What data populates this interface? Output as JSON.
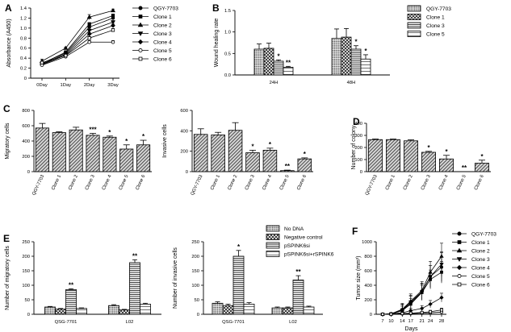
{
  "chart_data": [
    {
      "id": "A",
      "type": "line",
      "panel_label": "A",
      "ylabel": "Absorbance (A450)",
      "categories": [
        "0Day",
        "1Day",
        "2Day",
        "3Day"
      ],
      "ylim": [
        0,
        1.4
      ],
      "yticks": [
        "0",
        "0.2",
        "0.4",
        "0.6",
        "0.8",
        "1.0",
        "1.2",
        "1.4"
      ],
      "series": [
        {
          "name": "QGY-7703",
          "values": [
            0.3,
            0.5,
            1.02,
            1.2
          ],
          "errors": [
            0.03,
            0.02,
            0.03,
            0.03
          ],
          "marker": "circle"
        },
        {
          "name": "Clone 1",
          "values": [
            0.29,
            0.52,
            1.08,
            1.25
          ],
          "errors": [
            0.03,
            0.02,
            0.03,
            0.03
          ],
          "marker": "square"
        },
        {
          "name": "Clone 2",
          "values": [
            0.34,
            0.6,
            1.22,
            1.35
          ],
          "errors": [
            0.04,
            0.02,
            0.05,
            0.03
          ],
          "marker": "triangle-up"
        },
        {
          "name": "Clone 3",
          "values": [
            0.28,
            0.48,
            0.95,
            1.12
          ],
          "errors": [
            0.03,
            0.02,
            0.03,
            0.03
          ],
          "marker": "triangle-down"
        },
        {
          "name": "Clone 4",
          "values": [
            0.27,
            0.46,
            0.88,
            1.05
          ],
          "errors": [
            0.03,
            0.02,
            0.03,
            0.03
          ],
          "marker": "diamond"
        },
        {
          "name": "Clone 5",
          "values": [
            0.26,
            0.43,
            0.72,
            0.72
          ],
          "errors": [
            0.03,
            0.02,
            0.03,
            0.03
          ],
          "marker": "circle-open"
        },
        {
          "name": "Clone 6",
          "values": [
            0.31,
            0.45,
            0.8,
            0.96
          ],
          "errors": [
            0.03,
            0.02,
            0.03,
            0.03
          ],
          "marker": "square-open"
        }
      ]
    },
    {
      "id": "B",
      "type": "bar",
      "panel_label": "B",
      "ylabel": "Wound healing rate",
      "categories": [
        "24H",
        "48H"
      ],
      "ylim": [
        0,
        1.5
      ],
      "yticks": [
        "0.0",
        "0.5",
        "1.0",
        "1.5"
      ],
      "series": [
        {
          "name": "QGY-7703",
          "values": [
            0.6,
            0.85
          ],
          "errors": [
            0.12,
            0.22
          ],
          "pattern": "dots"
        },
        {
          "name": "Clone 1",
          "values": [
            0.62,
            0.88
          ],
          "errors": [
            0.12,
            0.2
          ],
          "pattern": "cross"
        },
        {
          "name": "Clone 3",
          "values": [
            0.32,
            0.6
          ],
          "errors": [
            0.03,
            0.08
          ],
          "pattern": "stripes"
        },
        {
          "name": "Clone 5",
          "values": [
            0.18,
            0.37
          ],
          "errors": [
            0.02,
            0.1
          ],
          "pattern": "lines"
        }
      ],
      "stars": [
        [
          "",
          ""
        ],
        [
          "",
          ""
        ],
        [
          "*",
          "*"
        ],
        [
          "**",
          "*"
        ]
      ]
    },
    {
      "id": "C1",
      "type": "bar",
      "panel_label": "C",
      "ylabel": "Migratory cells",
      "categories": [
        "QGY-7703",
        "Clone 1",
        "Clone 2",
        "Clone 3",
        "Clone 4",
        "Clone 5",
        "Clone 6"
      ],
      "ylim": [
        0,
        800
      ],
      "yticks": [
        "0",
        "200",
        "400",
        "600",
        "800"
      ],
      "values": [
        570,
        510,
        545,
        475,
        450,
        295,
        350
      ],
      "errors": [
        60,
        10,
        35,
        25,
        15,
        55,
        60
      ],
      "stars": [
        "",
        "",
        "",
        "***",
        "*",
        "*",
        "*"
      ]
    },
    {
      "id": "C2",
      "type": "bar",
      "panel_label": "",
      "ylabel": "Invasive cells",
      "categories": [
        "QGY-7703",
        "Clone 1",
        "Clone 2",
        "Clone 3",
        "Clone 4",
        "Clone 5",
        "Clone 6"
      ],
      "ylim": [
        0,
        600
      ],
      "yticks": [
        "0",
        "200",
        "400",
        "600"
      ],
      "values": [
        365,
        360,
        405,
        185,
        210,
        10,
        125
      ],
      "errors": [
        55,
        25,
        75,
        25,
        20,
        5,
        10
      ],
      "stars": [
        "",
        "",
        "",
        "*",
        "*",
        "**",
        "*"
      ]
    },
    {
      "id": "D",
      "type": "bar",
      "panel_label": "D",
      "ylabel": "Number of colony",
      "categories": [
        "QGY-7703",
        "Clone 1",
        "Clone 2",
        "Clone 3",
        "Clone 4",
        "Clone 5",
        "Clone 6"
      ],
      "ylim": [
        0,
        400
      ],
      "yticks": [
        "0",
        "100",
        "200",
        "300",
        "400"
      ],
      "values": [
        265,
        265,
        255,
        160,
        105,
        0,
        70
      ],
      "errors": [
        5,
        5,
        8,
        8,
        30,
        0,
        25
      ],
      "stars": [
        "",
        "",
        "",
        "*",
        "*",
        "**",
        "*"
      ]
    },
    {
      "id": "E1",
      "type": "bar",
      "panel_label": "E",
      "ylabel": "Number of migratory cells",
      "categories": [
        "QSG-7701",
        "L02"
      ],
      "ylim": [
        0,
        250
      ],
      "yticks": [
        "0",
        "50",
        "100",
        "150",
        "200",
        "250"
      ],
      "series": [
        {
          "name": "No DNA",
          "values": [
            25,
            30
          ],
          "errors": [
            2,
            3
          ],
          "pattern": "dots"
        },
        {
          "name": "Negative control",
          "values": [
            18,
            15
          ],
          "errors": [
            2,
            2
          ],
          "pattern": "cross"
        },
        {
          "name": "pSPINK6si",
          "values": [
            85,
            178
          ],
          "errors": [
            3,
            10
          ],
          "pattern": "stripes"
        },
        {
          "name": "pSPINK6si+rSPINK6",
          "values": [
            20,
            35
          ],
          "errors": [
            2,
            3
          ],
          "pattern": "lines"
        }
      ],
      "stars": [
        [
          "",
          ""
        ],
        [
          "",
          ""
        ],
        [
          "**",
          "**"
        ],
        [
          "",
          ""
        ]
      ]
    },
    {
      "id": "E2",
      "type": "bar",
      "panel_label": "",
      "ylabel": "Number of invasive cells",
      "categories": [
        "QSG-7701",
        "L02"
      ],
      "ylim": [
        0,
        250
      ],
      "yticks": [
        "0",
        "50",
        "100",
        "150",
        "200",
        "250"
      ],
      "series": [
        {
          "name": "No DNA",
          "values": [
            38,
            22
          ],
          "errors": [
            5,
            3
          ],
          "pattern": "dots"
        },
        {
          "name": "Negative control",
          "values": [
            30,
            22
          ],
          "errors": [
            5,
            3
          ],
          "pattern": "cross"
        },
        {
          "name": "pSPINK6si",
          "values": [
            200,
            118
          ],
          "errors": [
            20,
            15
          ],
          "pattern": "stripes"
        },
        {
          "name": "pSPINK6si+rSPINK6",
          "values": [
            35,
            25
          ],
          "errors": [
            5,
            3
          ],
          "pattern": "lines"
        }
      ],
      "stars": [
        [
          "",
          ""
        ],
        [
          "",
          ""
        ],
        [
          "*",
          "**"
        ],
        [
          "",
          ""
        ]
      ]
    },
    {
      "id": "F",
      "type": "line",
      "panel_label": "F",
      "ylabel": "Tumor size (mm³)",
      "xlabel": "Days",
      "categories": [
        "7",
        "10",
        "14",
        "17",
        "21",
        "24",
        "28"
      ],
      "ylim": [
        0,
        1000
      ],
      "yticks": [
        "0",
        "200",
        "400",
        "600",
        "800",
        "1000"
      ],
      "series": [
        {
          "name": "QGY-7703",
          "values": [
            0,
            5,
            60,
            150,
            310,
            520,
            650
          ],
          "errors": [
            2,
            10,
            80,
            100,
            120,
            150,
            200
          ],
          "marker": "circle"
        },
        {
          "name": "Clone 1",
          "values": [
            0,
            5,
            50,
            140,
            300,
            480,
            580
          ],
          "errors": [
            2,
            10,
            60,
            80,
            100,
            130,
            150
          ],
          "marker": "square"
        },
        {
          "name": "Clone 2",
          "values": [
            0,
            5,
            70,
            180,
            330,
            580,
            800
          ],
          "errors": [
            2,
            10,
            80,
            100,
            120,
            150,
            180
          ],
          "marker": "triangle-up"
        },
        {
          "name": "Clone 3",
          "values": [
            0,
            5,
            60,
            170,
            310,
            520,
            690
          ],
          "errors": [
            2,
            10,
            70,
            90,
            110,
            150,
            170
          ],
          "marker": "triangle-down"
        },
        {
          "name": "Clone 4",
          "values": [
            0,
            5,
            20,
            50,
            80,
            140,
            230
          ],
          "errors": [
            2,
            5,
            20,
            30,
            40,
            50,
            60
          ],
          "marker": "diamond"
        },
        {
          "name": "Clone 5",
          "values": [
            0,
            2,
            5,
            8,
            15,
            20,
            30
          ],
          "errors": [
            1,
            2,
            5,
            5,
            10,
            10,
            15
          ],
          "marker": "circle-open"
        },
        {
          "name": "Clone 6",
          "values": [
            0,
            2,
            10,
            15,
            25,
            35,
            60
          ],
          "errors": [
            1,
            3,
            8,
            10,
            15,
            20,
            25
          ],
          "marker": "square-open"
        }
      ]
    }
  ]
}
